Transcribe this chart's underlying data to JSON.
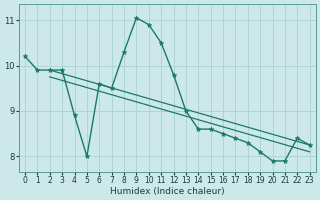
{
  "xlabel": "Humidex (Indice chaleur)",
  "xlim": [
    -0.5,
    23.5
  ],
  "ylim": [
    7.65,
    11.35
  ],
  "yticks": [
    8,
    9,
    10,
    11
  ],
  "xticks": [
    0,
    1,
    2,
    3,
    4,
    5,
    6,
    7,
    8,
    9,
    10,
    11,
    12,
    13,
    14,
    15,
    16,
    17,
    18,
    19,
    20,
    21,
    22,
    23
  ],
  "bg_color": "#cde8e8",
  "grid_color": "#afd4d4",
  "line_color": "#1a7a6a",
  "y_main": [
    10.2,
    9.9,
    9.9,
    9.9,
    8.9,
    8.0,
    9.6,
    9.5,
    10.3,
    11.05,
    10.9,
    10.5,
    9.8,
    9.0,
    8.6,
    8.6,
    8.5,
    8.4,
    8.3,
    8.1,
    7.9,
    7.9,
    8.4,
    8.25
  ],
  "trend1_x": [
    2,
    23
  ],
  "trend1_y": [
    9.9,
    8.25
  ],
  "trend2_x": [
    2,
    23
  ],
  "trend2_y": [
    9.75,
    8.1
  ],
  "xtick_fontsize": 5.5,
  "ytick_fontsize": 6,
  "xlabel_fontsize": 6.5
}
